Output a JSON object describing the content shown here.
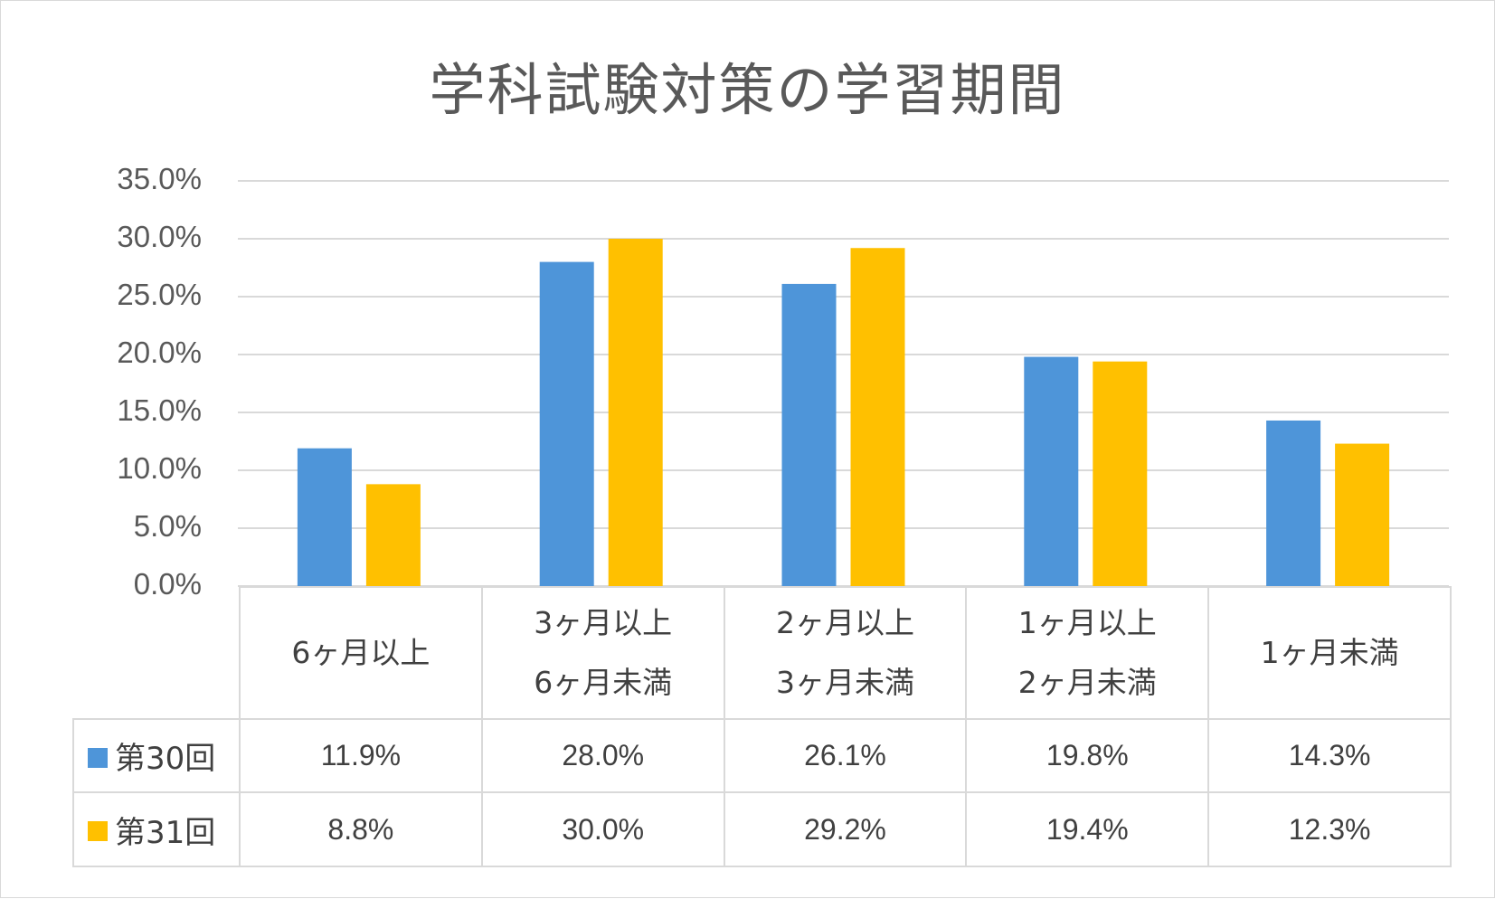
{
  "chart_data": {
    "type": "bar",
    "title": "学科試験対策の学習期間",
    "categories": [
      [
        "6ヶ月以上"
      ],
      [
        "3ヶ月以上",
        "6ヶ月未満"
      ],
      [
        "2ヶ月以上",
        "3ヶ月未満"
      ],
      [
        "1ヶ月以上",
        "2ヶ月未満"
      ],
      [
        "1ヶ月未満"
      ]
    ],
    "series": [
      {
        "name": "第30回",
        "color": "#4e95d9",
        "values": [
          11.9,
          28.0,
          26.1,
          19.8,
          14.3
        ],
        "labels": [
          "11.9%",
          "28.0%",
          "26.1%",
          "19.8%",
          "14.3%"
        ]
      },
      {
        "name": "第31回",
        "color": "#ffc000",
        "values": [
          8.8,
          30.0,
          29.2,
          19.4,
          12.3
        ],
        "labels": [
          "8.8%",
          "30.0%",
          "29.2%",
          "19.4%",
          "12.3%"
        ]
      }
    ],
    "ylim": [
      0,
      35
    ],
    "yticks": [
      "0.0%",
      "5.0%",
      "10.0%",
      "15.0%",
      "20.0%",
      "25.0%",
      "30.0%",
      "35.0%"
    ],
    "grid": true,
    "legend": "data-table"
  }
}
